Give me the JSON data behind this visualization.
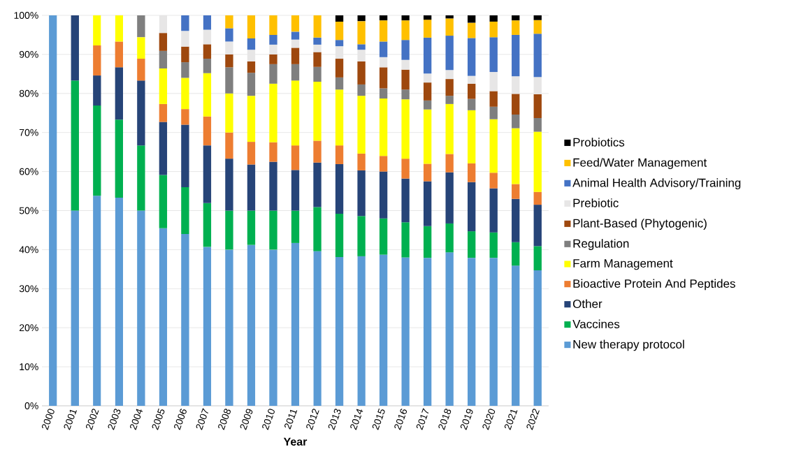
{
  "chart_data": {
    "type": "bar",
    "stacked": true,
    "xlabel": "Year",
    "grid": "y",
    "legend": "right",
    "categories": [
      "2000",
      "2001",
      "2002",
      "2003",
      "2004",
      "2005",
      "2006",
      "2007",
      "2008",
      "2009",
      "2010",
      "2011",
      "2012",
      "2013",
      "2014",
      "2015",
      "2016",
      "2017",
      "2018",
      "2019",
      "2020",
      "2021",
      "2022"
    ],
    "ylim": [
      0,
      100
    ],
    "yticks": [
      {
        "value": 0,
        "label": "0%"
      },
      {
        "value": 10,
        "label": "10%"
      },
      {
        "value": 20,
        "label": "20%"
      },
      {
        "value": 30,
        "label": "30%"
      },
      {
        "value": 40,
        "label": "40%"
      },
      {
        "value": 50,
        "label": "50%"
      },
      {
        "value": 60,
        "label": "60%"
      },
      {
        "value": 70,
        "label": "70%"
      },
      {
        "value": 80,
        "label": "80%"
      },
      {
        "value": 90,
        "label": "90%"
      },
      {
        "value": 100,
        "label": "100%"
      }
    ],
    "series": [
      {
        "name": "New therapy protocol",
        "color": "#5b9bd5",
        "values": [
          100,
          50,
          53.8,
          53.3,
          50,
          45.5,
          44,
          40.7,
          40,
          41.2,
          40,
          41.7,
          39.6,
          38.1,
          38.3,
          38.7,
          38,
          37.9,
          39.3,
          37.9,
          37.9,
          35.9,
          34.7
        ]
      },
      {
        "name": "Vaccines",
        "color": "#00b050",
        "values": [
          null,
          33.3,
          23.1,
          20,
          16.7,
          13.6,
          12,
          11.2,
          10,
          8.8,
          10,
          8.3,
          11.3,
          11.1,
          10.3,
          9.3,
          9,
          8.1,
          7.4,
          6.8,
          6.5,
          6,
          6.2
        ]
      },
      {
        "name": "Other",
        "color": "#264478",
        "values": [
          null,
          16.7,
          7.7,
          13.4,
          16.6,
          13.6,
          16,
          14.8,
          13.3,
          11.8,
          12.5,
          10.4,
          11.4,
          12.7,
          11.7,
          12,
          11.2,
          11.5,
          13.1,
          12.6,
          11.3,
          11.1,
          10.6
        ]
      },
      {
        "name": "Bioactive Protein And Peptides",
        "color": "#ed7d31",
        "values": [
          null,
          null,
          7.7,
          6.6,
          5.6,
          4.6,
          4,
          7.4,
          6.7,
          5.8,
          5,
          6.3,
          5.6,
          4.8,
          4.3,
          4,
          5.1,
          4.5,
          4.7,
          4.8,
          4,
          3.8,
          3.3
        ]
      },
      {
        "name": "Farm Management",
        "color": "#ffff00",
        "values": [
          null,
          null,
          7.7,
          6.7,
          5.5,
          9.1,
          8,
          11.1,
          10,
          11.8,
          15,
          16.6,
          15.1,
          14.3,
          14.8,
          14.7,
          15.2,
          13.9,
          12.8,
          13.6,
          13.7,
          14.3,
          15.4
        ]
      },
      {
        "name": "Regulation",
        "color": "#7f7f7f",
        "values": [
          null,
          null,
          null,
          null,
          5.6,
          4.5,
          4,
          3.7,
          6.7,
          5.9,
          5,
          4.2,
          3.8,
          3.1,
          2.9,
          2.6,
          2.5,
          2.3,
          2.1,
          2.9,
          3.2,
          3.5,
          3.5
        ]
      },
      {
        "name": "Plant-Based (Phytogenic)",
        "color": "#9e480e",
        "values": [
          null,
          null,
          null,
          null,
          null,
          4.6,
          4,
          3.7,
          3.3,
          2.9,
          2.5,
          4.2,
          3.8,
          4.8,
          5.9,
          5.4,
          5.1,
          4.6,
          4.3,
          3.9,
          4,
          5.3,
          6.1
        ]
      },
      {
        "name": "Prebiotic",
        "color": "#e7e6e6",
        "values": [
          null,
          null,
          null,
          null,
          null,
          4.5,
          4,
          3.7,
          3.3,
          3,
          2.5,
          2.1,
          1.9,
          3.2,
          3,
          2.6,
          2.5,
          2.3,
          2.3,
          2,
          4.9,
          4.5,
          4.4
        ]
      },
      {
        "name": "Animal Health Advisory/Training",
        "color": "#4472c4",
        "values": [
          null,
          null,
          null,
          null,
          null,
          null,
          4,
          3.7,
          3.4,
          2.9,
          2.5,
          2,
          1.8,
          1.6,
          1.4,
          4,
          5.1,
          9.2,
          8.8,
          9.7,
          8.9,
          10.6,
          11.1
        ]
      },
      {
        "name": "Feed/Water Management",
        "color": "#ffc000",
        "values": [
          null,
          null,
          null,
          null,
          null,
          null,
          null,
          null,
          3.3,
          5.9,
          5,
          4.2,
          5.7,
          4.7,
          5.9,
          5.4,
          5,
          4.6,
          4.4,
          3.9,
          4,
          3.7,
          3.5
        ]
      },
      {
        "name": "Probiotics",
        "color": "#000000",
        "values": [
          null,
          null,
          null,
          null,
          null,
          null,
          null,
          null,
          null,
          null,
          null,
          null,
          null,
          1.6,
          1.5,
          1.3,
          1.3,
          1.1,
          0.8,
          1.9,
          1.6,
          1.3,
          1.2
        ]
      }
    ]
  }
}
